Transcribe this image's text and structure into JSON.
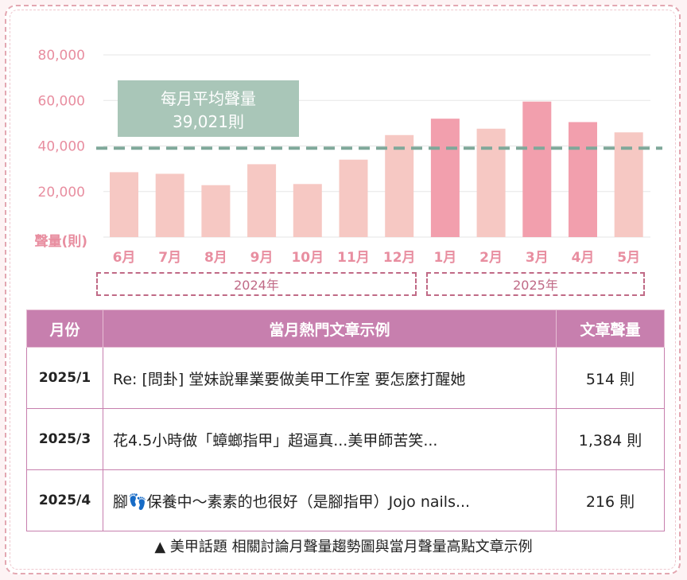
{
  "chart_data": {
    "type": "bar",
    "categories": [
      "6月",
      "7月",
      "8月",
      "9月",
      "10月",
      "11月",
      "12月",
      "1月",
      "2月",
      "3月",
      "4月",
      "5月"
    ],
    "values": [
      28500,
      27800,
      22800,
      32000,
      23300,
      34000,
      44800,
      52000,
      47600,
      59500,
      50500,
      46000
    ],
    "highlight": [
      false,
      false,
      false,
      false,
      false,
      false,
      false,
      true,
      false,
      true,
      true,
      false
    ],
    "ylabel": "聲量(則)",
    "yticks": [
      "80,000",
      "60,000",
      "40,000",
      "20,000"
    ],
    "ylim": [
      0,
      80000
    ],
    "average": {
      "value": 39021,
      "label_line1": "每月平均聲量",
      "label_line2": "39,021則"
    },
    "years": [
      "2024年",
      "2025年"
    ],
    "colors": {
      "bar": "#f6c8c3",
      "bar_highlight": "#f29fad",
      "avg_line": "#7fa89a",
      "avg_box": "#a9c6b8",
      "axis_text": "#e88ea0",
      "grid": "#e5e5e5"
    }
  },
  "table": {
    "headers": [
      "月份",
      "當月熱門文章示例",
      "文章聲量"
    ],
    "rows": [
      {
        "month": "2025/1",
        "title": "Re: [問卦] 堂妹說畢業要做美甲工作室 要怎麼打醒她",
        "count": "514 則"
      },
      {
        "month": "2025/3",
        "title": "花4.5小時做「蟑螂指甲」超逼真...美甲師苦笑...",
        "count": "1,384 則"
      },
      {
        "month": "2025/4",
        "title": "腳👣保養中～素素的也很好（是腳指甲）Jojo nails...",
        "count": "216 則"
      }
    ]
  },
  "caption": "▲ 美甲話題 相關討論月聲量趨勢圖與當月聲量高點文章示例"
}
